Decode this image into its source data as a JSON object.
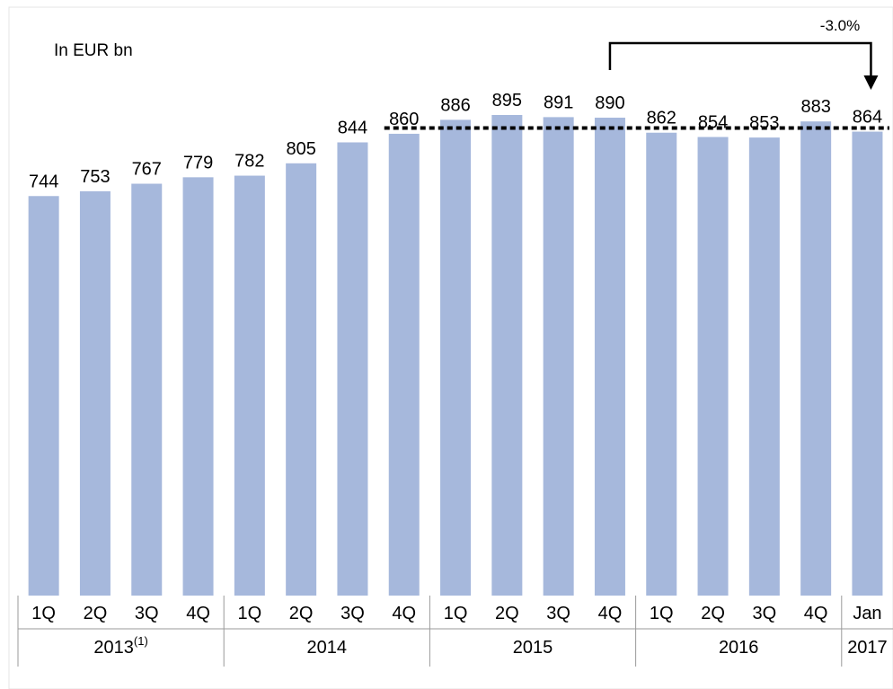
{
  "chart_data": {
    "type": "bar",
    "unit_note": "In EUR bn",
    "annotation": "-3.0%",
    "color": "#a6b8dc",
    "groups": [
      {
        "label": "2013",
        "superscript": "(1)",
        "categories": [
          "1Q",
          "2Q",
          "3Q",
          "4Q"
        ]
      },
      {
        "label": "2014",
        "categories": [
          "1Q",
          "2Q",
          "3Q",
          "4Q"
        ]
      },
      {
        "label": "2015",
        "categories": [
          "1Q",
          "2Q",
          "3Q",
          "4Q"
        ]
      },
      {
        "label": "2016",
        "categories": [
          "1Q",
          "2Q",
          "3Q",
          "4Q"
        ]
      },
      {
        "label": "2017",
        "categories": [
          "Jan"
        ]
      }
    ],
    "values": [
      744,
      753,
      767,
      779,
      782,
      805,
      844,
      860,
      886,
      895,
      891,
      890,
      862,
      854,
      853,
      883,
      864
    ]
  }
}
